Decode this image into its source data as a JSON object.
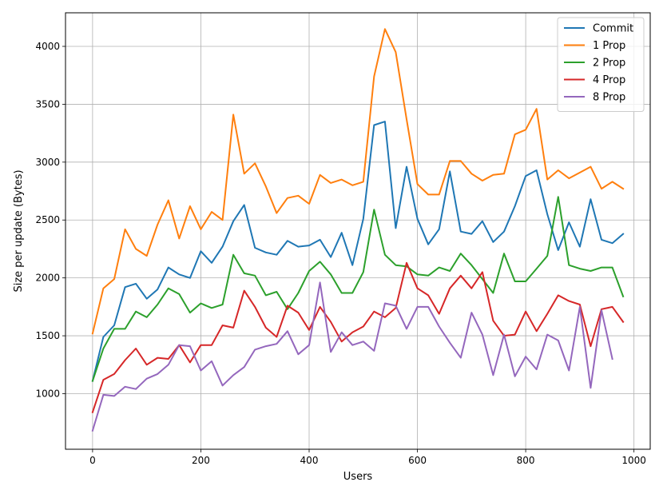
{
  "chart_data": {
    "type": "line",
    "xlabel": "Users",
    "ylabel": "Size per update (Bytes)",
    "xlim": [
      -50,
      1030
    ],
    "ylim": [
      520,
      4290
    ],
    "x_ticks": [
      0,
      200,
      400,
      600,
      800,
      1000
    ],
    "y_ticks": [
      1000,
      1500,
      2000,
      2500,
      3000,
      3500,
      4000
    ],
    "grid": true,
    "legend_position": "top-right",
    "x": [
      0,
      20,
      40,
      60,
      80,
      100,
      120,
      140,
      160,
      180,
      200,
      220,
      240,
      260,
      280,
      300,
      320,
      340,
      360,
      380,
      400,
      420,
      440,
      460,
      480,
      500,
      520,
      540,
      560,
      580,
      600,
      620,
      640,
      660,
      680,
      700,
      720,
      740,
      760,
      780,
      800,
      820,
      840,
      860,
      880,
      900,
      920,
      940,
      960,
      980
    ],
    "series": [
      {
        "name": "Commit",
        "color": "#1f77b4",
        "values": [
          1110,
          1490,
          1590,
          1920,
          1950,
          1820,
          1900,
          2090,
          2030,
          2000,
          2230,
          2130,
          2270,
          2490,
          2630,
          2260,
          2220,
          2200,
          2320,
          2270,
          2280,
          2330,
          2180,
          2390,
          2110,
          2510,
          3320,
          3350,
          2430,
          2960,
          2510,
          2290,
          2420,
          2920,
          2400,
          2380,
          2490,
          2310,
          2400,
          2620,
          2880,
          2930,
          2550,
          2240,
          2480,
          2270,
          2680,
          2330,
          2300,
          2380
        ]
      },
      {
        "name": "1 Prop",
        "color": "#ff7f0e",
        "values": [
          1520,
          1910,
          1990,
          2420,
          2250,
          2190,
          2460,
          2670,
          2340,
          2620,
          2420,
          2570,
          2500,
          3410,
          2900,
          2990,
          2790,
          2560,
          2690,
          2710,
          2640,
          2890,
          2820,
          2850,
          2800,
          2830,
          3740,
          4150,
          3950,
          3370,
          2810,
          2720,
          2720,
          3010,
          3010,
          2900,
          2840,
          2890,
          2900,
          3240,
          3280,
          3460,
          2850,
          2930,
          2860,
          2910,
          2960,
          2770,
          2830,
          2770
        ]
      },
      {
        "name": "2 Prop",
        "color": "#2ca02c",
        "values": [
          1110,
          1390,
          1560,
          1560,
          1710,
          1660,
          1770,
          1910,
          1860,
          1700,
          1780,
          1740,
          1770,
          2200,
          2040,
          2020,
          1850,
          1880,
          1730,
          1870,
          2060,
          2140,
          2030,
          1870,
          1870,
          2050,
          2590,
          2200,
          2110,
          2100,
          2030,
          2020,
          2090,
          2060,
          2210,
          2110,
          1990,
          1870,
          2210,
          1970,
          1970,
          2080,
          2190,
          2700,
          2110,
          2080,
          2060,
          2090,
          2090,
          1840
        ]
      },
      {
        "name": "4 Prop",
        "color": "#d62728",
        "values": [
          840,
          1120,
          1170,
          1290,
          1390,
          1250,
          1310,
          1300,
          1420,
          1270,
          1420,
          1420,
          1590,
          1570,
          1890,
          1750,
          1570,
          1490,
          1760,
          1700,
          1550,
          1750,
          1620,
          1450,
          1530,
          1580,
          1710,
          1660,
          1740,
          2130,
          1910,
          1850,
          1690,
          1910,
          2020,
          1910,
          2050,
          1630,
          1500,
          1510,
          1710,
          1540,
          1690,
          1850,
          1800,
          1770,
          1410,
          1730,
          1750,
          1620
        ]
      },
      {
        "name": "8 Prop",
        "color": "#9467bd",
        "values": [
          680,
          990,
          980,
          1060,
          1040,
          1130,
          1170,
          1250,
          1420,
          1410,
          1200,
          1280,
          1070,
          1160,
          1230,
          1380,
          1410,
          1430,
          1540,
          1340,
          1420,
          1960,
          1360,
          1530,
          1420,
          1450,
          1370,
          1780,
          1760,
          1560,
          1750,
          1750,
          1580,
          1440,
          1310,
          1700,
          1510,
          1160,
          1510,
          1150,
          1320,
          1210,
          1510,
          1460,
          1200,
          1750,
          1050,
          1720,
          1300,
          null
        ]
      }
    ]
  }
}
